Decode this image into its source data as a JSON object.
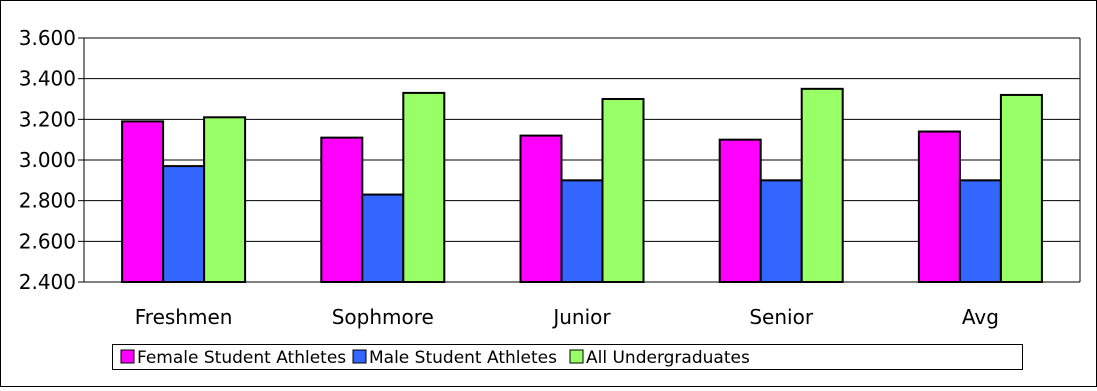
{
  "chart_data": {
    "type": "bar",
    "categories": [
      "Freshmen",
      "Sophmore",
      "Junior",
      "Senior",
      "Avg"
    ],
    "series": [
      {
        "name": "Female Student Athletes",
        "color": "#ff00ff",
        "values": [
          3.19,
          3.11,
          3.12,
          3.1,
          3.14
        ]
      },
      {
        "name": "Male Student Athletes",
        "color": "#3366ff",
        "values": [
          2.97,
          2.83,
          2.9,
          2.9,
          2.9
        ]
      },
      {
        "name": "All Undergraduates",
        "color": "#99ff66",
        "values": [
          3.21,
          3.33,
          3.3,
          3.35,
          3.32
        ]
      }
    ],
    "y_ticks": [
      "2.400",
      "2.600",
      "2.800",
      "3.000",
      "3.200",
      "3.400",
      "3.600"
    ],
    "ylim": [
      2.4,
      3.6
    ],
    "grid": true,
    "legend_position": "bottom"
  }
}
